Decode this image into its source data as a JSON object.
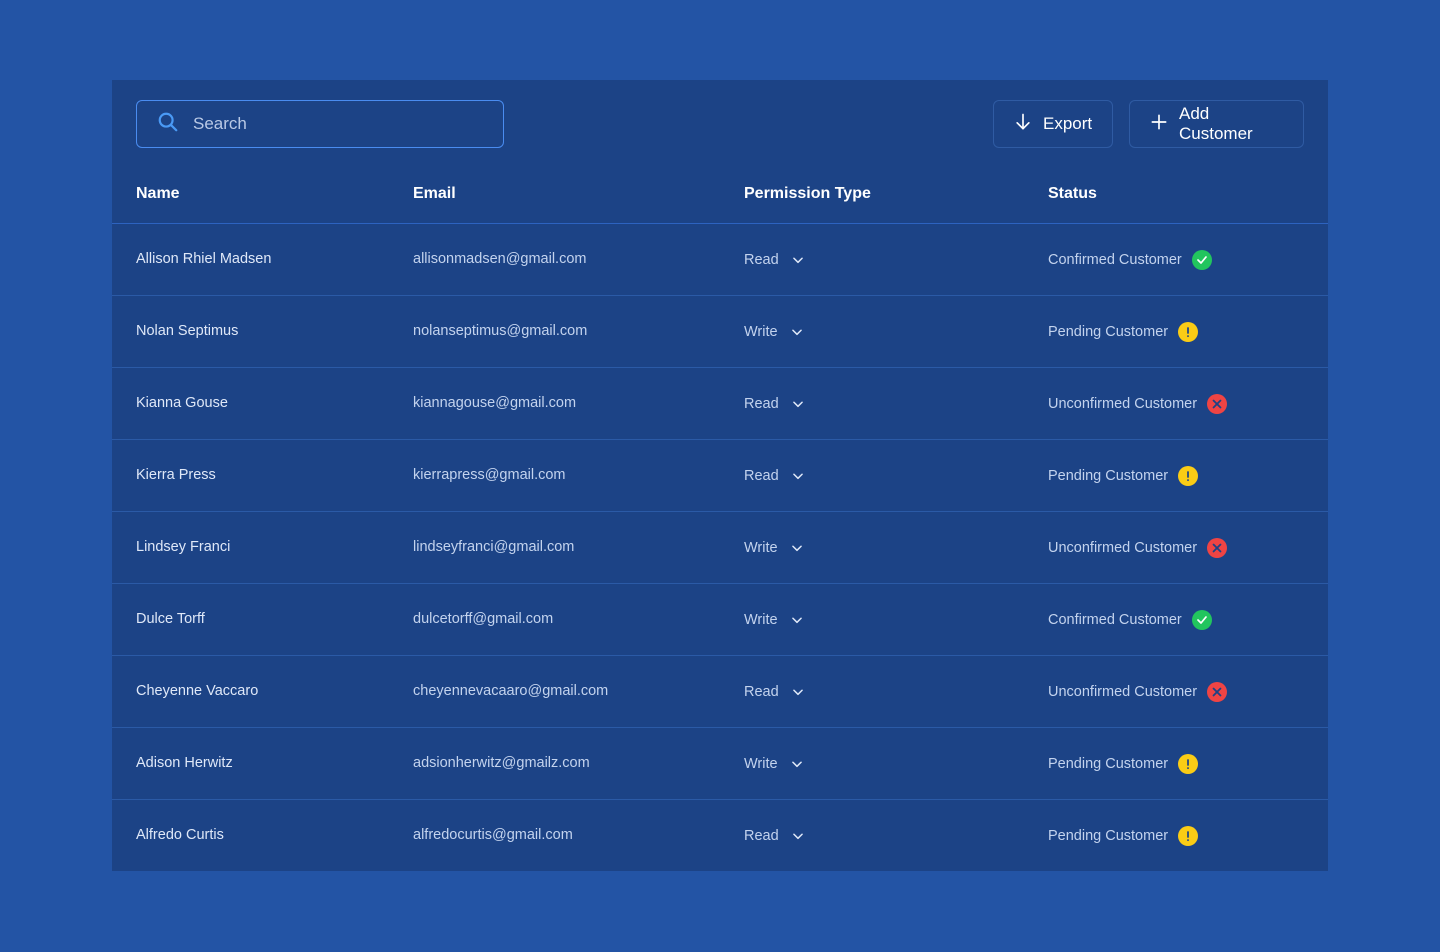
{
  "search": {
    "placeholder": "Search"
  },
  "toolbar": {
    "export_label": "Export",
    "add_label": "Add Customer"
  },
  "columns": {
    "name": "Name",
    "email": "Email",
    "permission": "Permission Type",
    "status": "Status"
  },
  "colors": {
    "background": "#2354a5",
    "panel": "#1c4386",
    "confirmed": "#22c55e",
    "pending": "#facc15",
    "unconfirmed": "#ef4444"
  },
  "rows": [
    {
      "name": "Allison Rhiel Madsen",
      "email": "allisonmadsen@gmail.com",
      "permission": "Read",
      "status": "Confirmed Customer",
      "status_kind": "confirmed"
    },
    {
      "name": "Nolan Septimus",
      "email": "nolanseptimus@gmail.com",
      "permission": "Write",
      "status": "Pending Customer",
      "status_kind": "pending"
    },
    {
      "name": "Kianna Gouse",
      "email": "kiannagouse@gmail.com",
      "permission": "Read",
      "status": "Unconfirmed Customer",
      "status_kind": "unconfirmed"
    },
    {
      "name": "Kierra Press",
      "email": "kierrapress@gmail.com",
      "permission": "Read",
      "status": "Pending Customer",
      "status_kind": "pending"
    },
    {
      "name": "Lindsey Franci",
      "email": "lindseyfranci@gmail.com",
      "permission": "Write",
      "status": "Unconfirmed Customer",
      "status_kind": "unconfirmed"
    },
    {
      "name": "Dulce Torff",
      "email": "dulcetorff@gmail.com",
      "permission": "Write",
      "status": "Confirmed Customer",
      "status_kind": "confirmed"
    },
    {
      "name": "Cheyenne Vaccaro",
      "email": "cheyennevacaaro@gmail.com",
      "permission": "Read",
      "status": "Unconfirmed Customer",
      "status_kind": "unconfirmed"
    },
    {
      "name": "Adison Herwitz",
      "email": "adsionherwitz@gmailz.com",
      "permission": "Write",
      "status": "Pending Customer",
      "status_kind": "pending"
    },
    {
      "name": "Alfredo Curtis",
      "email": "alfredocurtis@gmail.com",
      "permission": "Read",
      "status": "Pending Customer",
      "status_kind": "pending"
    }
  ]
}
